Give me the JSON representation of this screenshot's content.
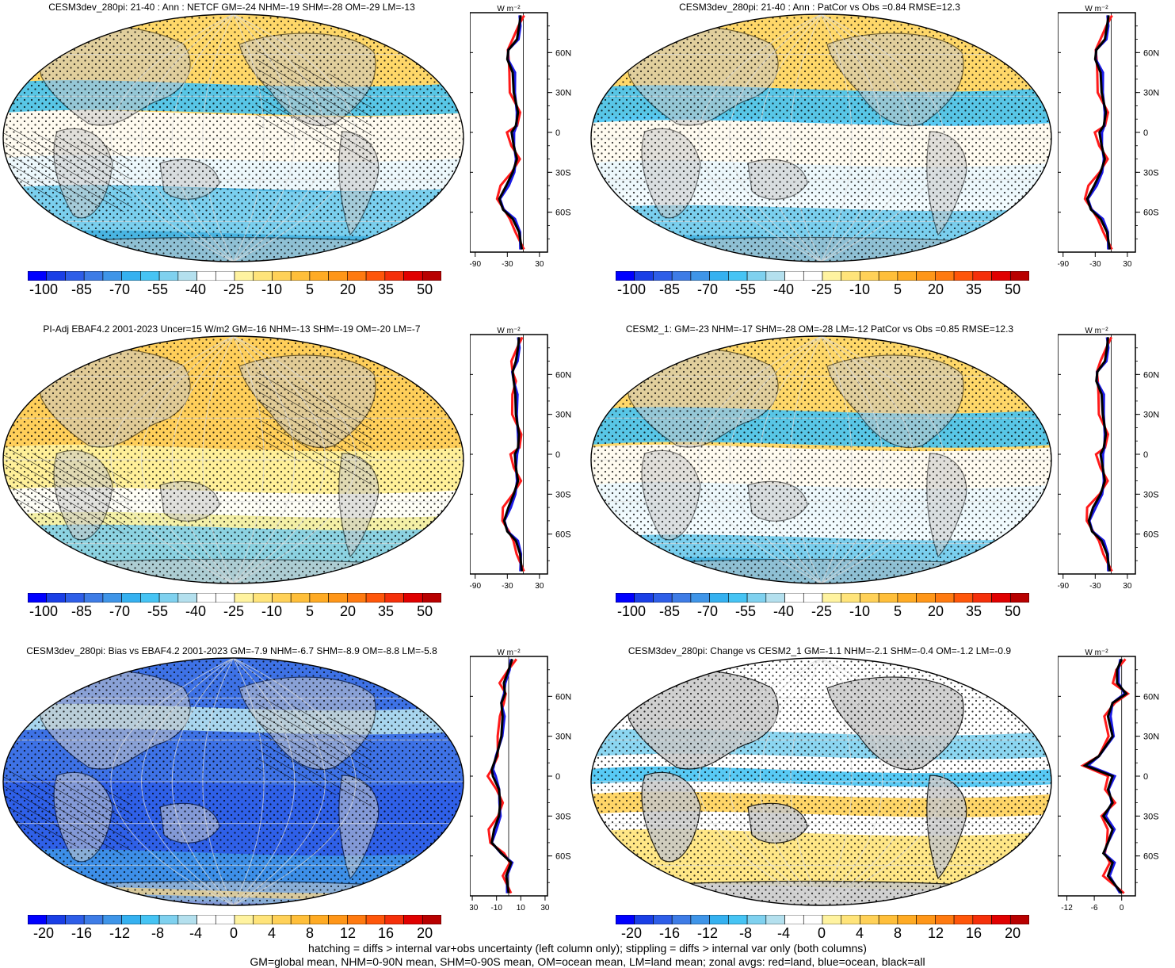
{
  "colors": {
    "palette": [
      "#0000ff",
      "#1a3fe6",
      "#2e5ee8",
      "#3e7ce6",
      "#3f95e8",
      "#35b1f0",
      "#46c4f4",
      "#7fd1ef",
      "#b4e0ee",
      "#ffffff",
      "#ffffff",
      "#fff3a0",
      "#ffe47a",
      "#ffd158",
      "#ffbf3a",
      "#ffab24",
      "#ff9618",
      "#ff7a10",
      "#ff560a",
      "#f5300a",
      "#e00000",
      "#b80000"
    ],
    "land": "#c8c8c8",
    "red": "#ff1a1a",
    "blue": "#1a1ae6",
    "black": "#000000"
  },
  "panels": [
    {
      "title": "CESM3dev_280pi: 21-40 : Ann : NETCF GM=-24 NHM=-19 SHM=-28 OM=-29 LM=-13",
      "colorbar_labels": [
        "-100",
        "-85",
        "-70",
        "-55",
        "-40",
        "-25",
        "-10",
        "5",
        "20",
        "35",
        "50"
      ],
      "zonal": {
        "unit": "W m⁻²",
        "lat_labels": [
          "60N",
          "30N",
          "0",
          "30S",
          "60S"
        ],
        "x_labels": [
          "-90",
          "-30",
          "30"
        ],
        "xlim": [
          -100,
          45
        ]
      }
    },
    {
      "title": "CESM3dev_280pi: 21-40 : Ann : PatCor vs Obs =0.84 RMSE=12.3",
      "colorbar_labels": [
        "-100",
        "-85",
        "-70",
        "-55",
        "-40",
        "-25",
        "-10",
        "5",
        "20",
        "35",
        "50"
      ],
      "zonal": {
        "unit": "W m⁻²",
        "lat_labels": [
          "60N",
          "30N",
          "0",
          "30S",
          "60S"
        ],
        "x_labels": [
          "-90",
          "-30",
          "30"
        ],
        "xlim": [
          -100,
          45
        ]
      }
    },
    {
      "title": "PI-Adj EBAF4.2 2001-2023 Uncer=15 W/m2 GM=-16 NHM=-13 SHM=-19 OM=-20 LM=-7",
      "colorbar_labels": [
        "-100",
        "-85",
        "-70",
        "-55",
        "-40",
        "-25",
        "-10",
        "5",
        "20",
        "35",
        "50"
      ],
      "zonal": {
        "unit": "W m⁻²",
        "lat_labels": [
          "60N",
          "30N",
          "0",
          "30S",
          "60S"
        ],
        "x_labels": [
          "-90",
          "-30",
          "30"
        ],
        "xlim": [
          -100,
          45
        ]
      }
    },
    {
      "title": "CESM2_1: GM=-23 NHM=-17 SHM=-28 OM=-28 LM=-12 PatCor vs Obs =0.85 RMSE=12.3",
      "colorbar_labels": [
        "-100",
        "-85",
        "-70",
        "-55",
        "-40",
        "-25",
        "-10",
        "5",
        "20",
        "35",
        "50"
      ],
      "zonal": {
        "unit": "W m⁻²",
        "lat_labels": [
          "60N",
          "30N",
          "0",
          "30S",
          "60S"
        ],
        "x_labels": [
          "-90",
          "-30",
          "30"
        ],
        "xlim": [
          -100,
          45
        ]
      }
    },
    {
      "title": "CESM3dev_280pi: Bias vs EBAF4.2 2001-2023 GM=-7.9 NHM=-6.7 SHM=-8.9 OM=-8.8 LM=-5.8",
      "colorbar_labels": [
        "-20",
        "-16",
        "-12",
        "-8",
        "-4",
        "0",
        "4",
        "8",
        "12",
        "16",
        "20"
      ],
      "zonal": {
        "unit": "W m⁻²",
        "lat_labels": [
          "60N",
          "30N",
          "0",
          "30S",
          "60S"
        ],
        "x_labels": [
          "-30",
          "-10",
          "10",
          "30"
        ],
        "xlim": [
          -32,
          32
        ]
      }
    },
    {
      "title": "CESM3dev_280pi: Change vs CESM2_1 GM=-1.1 NHM=-2.1 SHM=-0.4 OM=-1.2 LM=-0.9",
      "colorbar_labels": [
        "-20",
        "-16",
        "-12",
        "-8",
        "-4",
        "0",
        "4",
        "8",
        "12",
        "16",
        "20"
      ],
      "zonal": {
        "unit": "W m⁻²",
        "lat_labels": [
          "60N",
          "30N",
          "0",
          "30S",
          "60S"
        ],
        "x_labels": [
          "-12",
          "-6",
          "0"
        ],
        "xlim": [
          -14,
          3
        ]
      }
    }
  ],
  "footer": [
    "hatching = diffs > internal var+obs uncertainty (left column only); stippling = diffs > internal var only (both columns)",
    "GM=global mean, NHM=0-90N mean, SHM=0-90S mean, OM=ocean mean, LM=land mean; zonal avgs: red=land, blue=ocean, black=all"
  ]
}
